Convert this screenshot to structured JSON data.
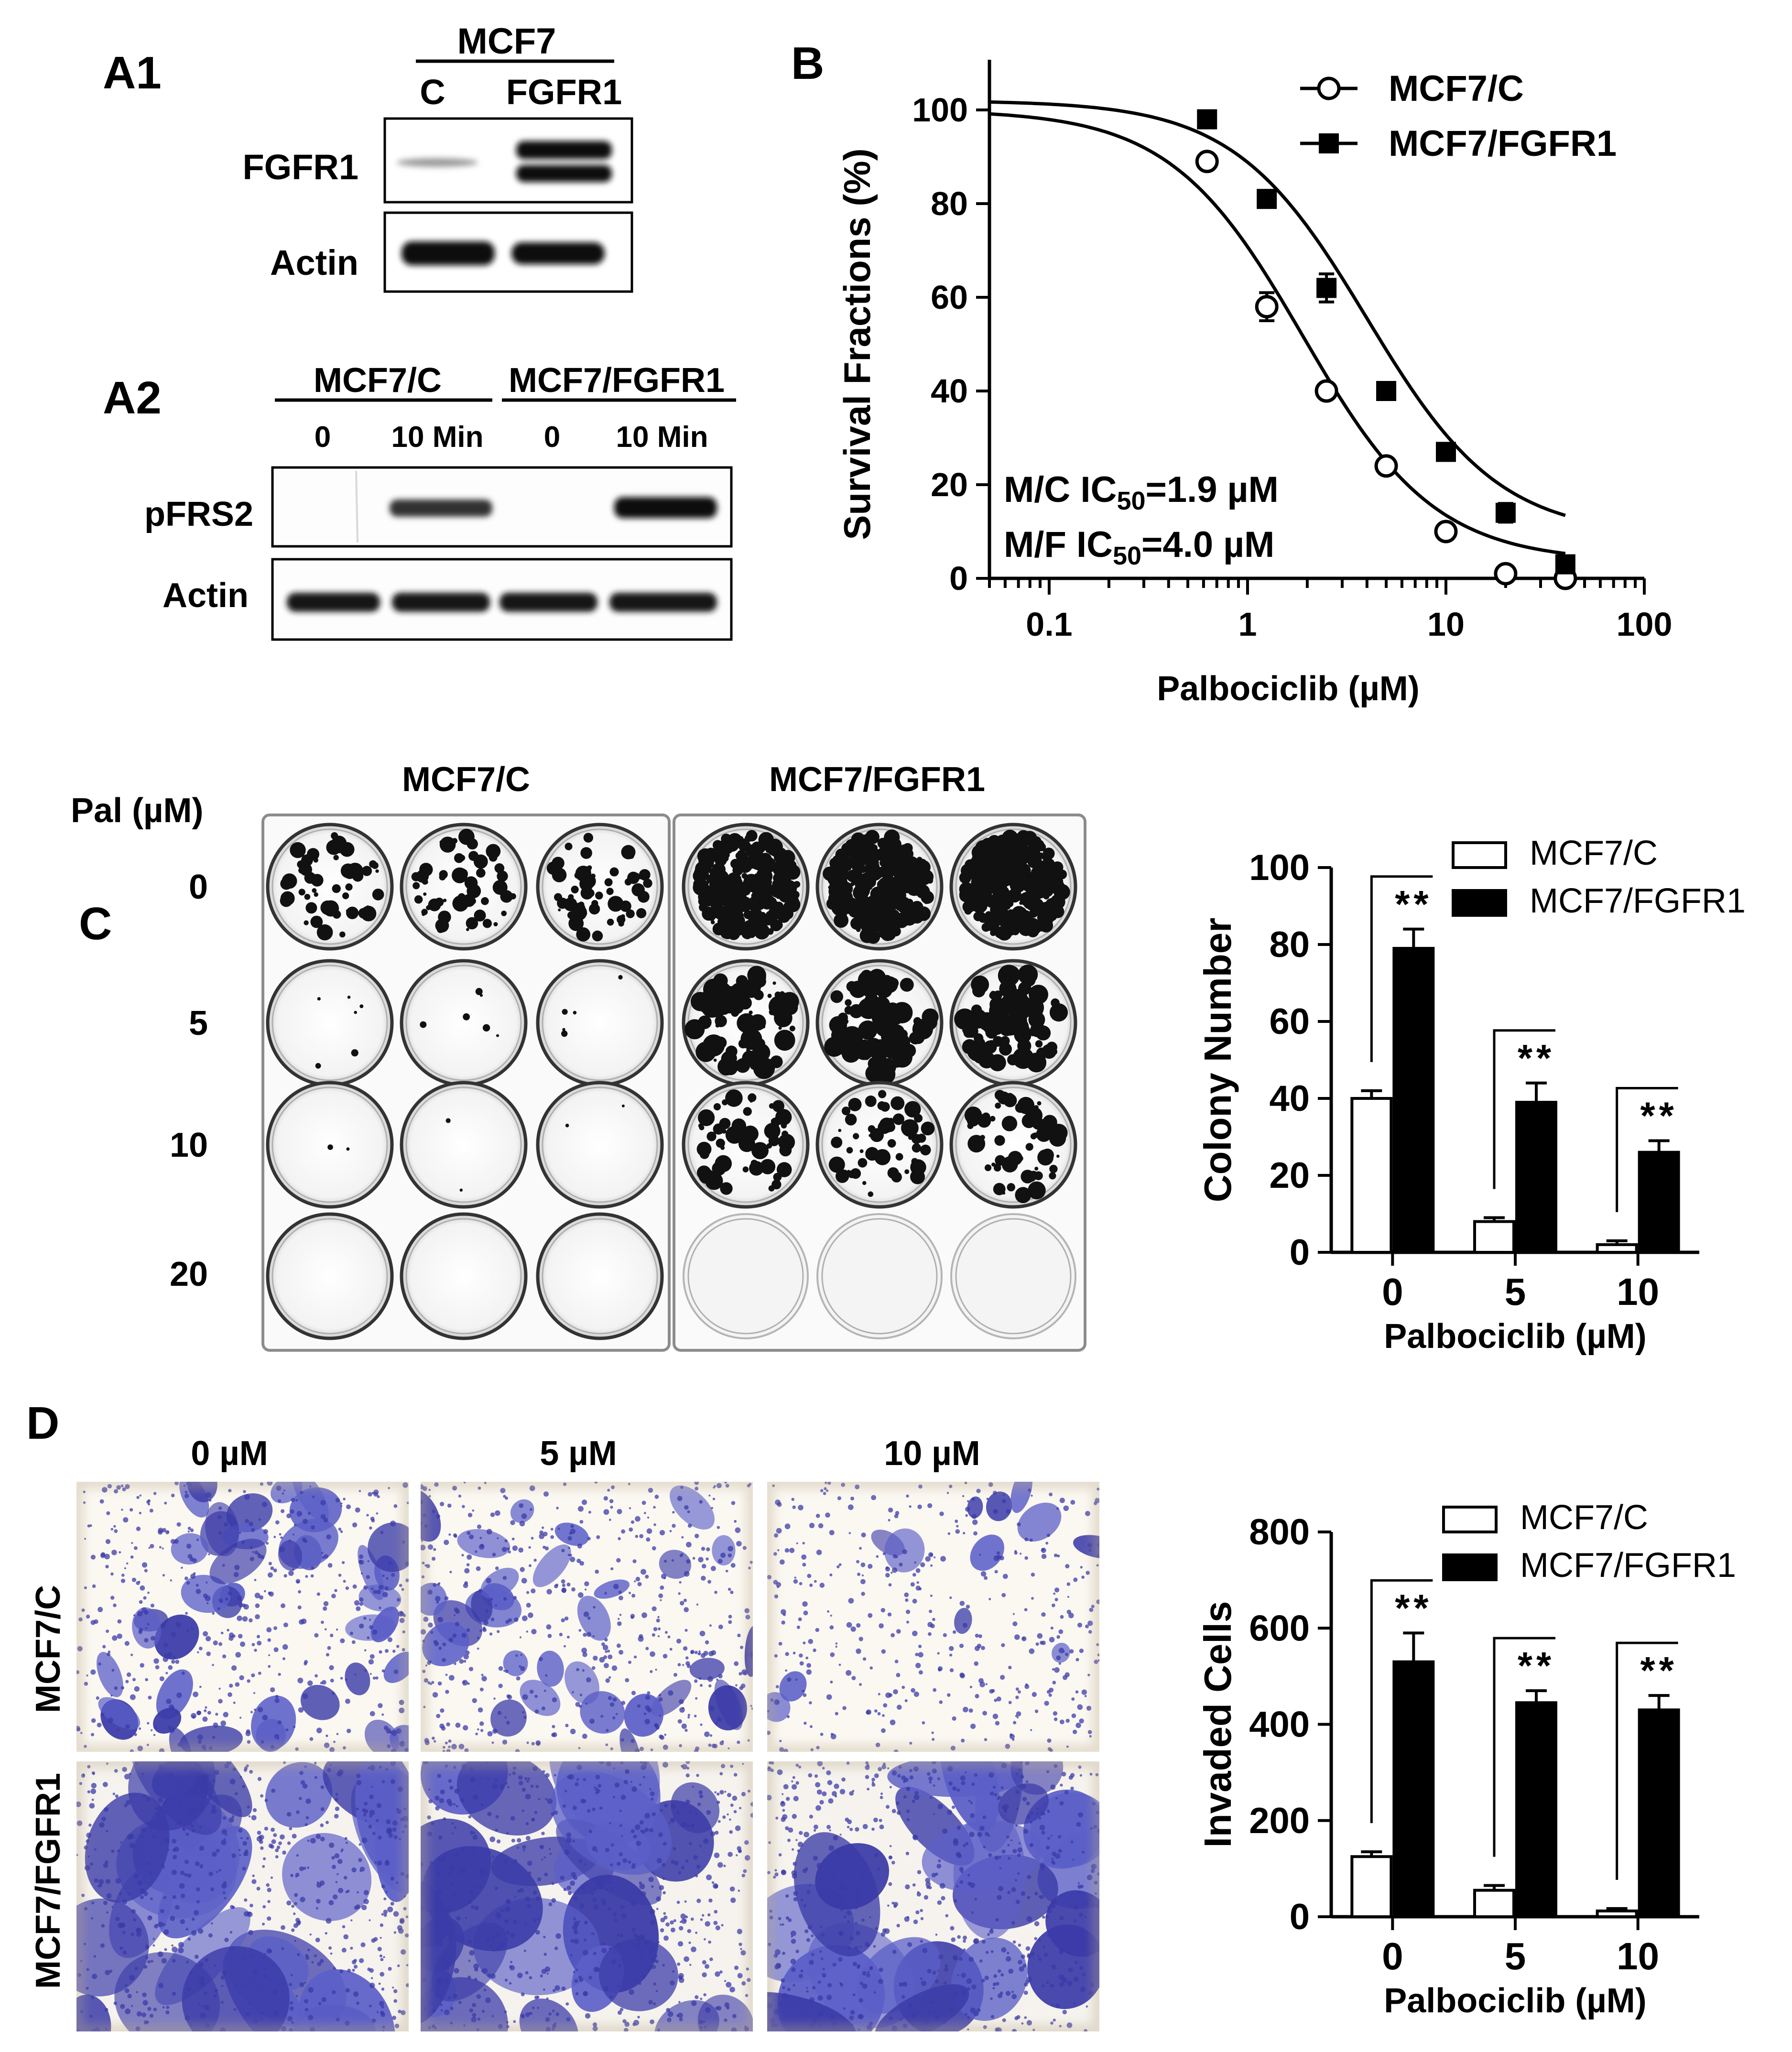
{
  "panels": {
    "a1": {
      "label": "A1",
      "group": "MCF7",
      "lanes": [
        "C",
        "FGFR1"
      ],
      "rows": [
        "FGFR1",
        "Actin"
      ]
    },
    "a2": {
      "label": "A2",
      "groups": [
        "MCF7/C",
        "MCF7/FGFR1"
      ],
      "lanes": [
        "0",
        "10 Min",
        "0",
        "10 Min"
      ],
      "rows": [
        "pFRS2",
        "Actin"
      ]
    },
    "b": {
      "label": "B"
    },
    "c": {
      "label": "C",
      "row_header": "Pal (µM)",
      "columns": [
        "MCF7/C",
        "MCF7/FGFR1"
      ],
      "rows": [
        "0",
        "5",
        "10",
        "20"
      ]
    },
    "d": {
      "label": "D",
      "columns": [
        "0 µM",
        "5 µM",
        "10 µM"
      ],
      "rows": [
        "MCF7/C",
        "MCF7/FGFR1"
      ]
    }
  },
  "colors": {
    "ink": "#000000",
    "stain": "#5b5fc7",
    "stain_dark": "#3b3ba8",
    "paper": "#fbf8f2"
  },
  "chart_data": [
    {
      "id": "B",
      "type": "scatter",
      "xscale": "log",
      "xlabel": "Palbociclib (µM)",
      "ylabel": "Survival Fractions (%)",
      "xlim": [
        0.05,
        100
      ],
      "ylim": [
        0,
        100
      ],
      "xticks": [
        "0.1",
        "1",
        "10",
        "100"
      ],
      "yticks": [
        "0",
        "20",
        "40",
        "60",
        "80",
        "100"
      ],
      "legend_position": "top-right",
      "annotations": [
        "M/C IC50=1.9 µM",
        "M/F IC50=4.0 µM"
      ],
      "series": [
        {
          "name": "MCF7/C",
          "marker": "open-circle",
          "x": [
            0.625,
            1.25,
            2.5,
            5,
            10,
            20,
            40
          ],
          "y": [
            89,
            58,
            40,
            24,
            10,
            1,
            0
          ],
          "err": [
            0,
            3,
            0,
            0,
            0,
            0,
            0
          ],
          "fit": {
            "top": 100,
            "bottom": 3.5,
            "ic50": 1.9,
            "hill": 1.3
          }
        },
        {
          "name": "MCF7/FGFR1",
          "marker": "filled-square",
          "x": [
            0.625,
            1.25,
            2.5,
            5,
            10,
            20,
            40
          ],
          "y": [
            98,
            81,
            62,
            40,
            27,
            14,
            3
          ],
          "err": [
            0,
            0,
            3,
            0,
            0,
            2,
            0
          ],
          "fit": {
            "top": 102,
            "bottom": 9,
            "ic50": 4.0,
            "hill": 1.3
          }
        }
      ]
    },
    {
      "id": "C",
      "type": "bar",
      "categories": [
        "0",
        "5",
        "10"
      ],
      "xlabel": "Palbociclib (µM)",
      "ylabel": "Colony Number",
      "ylim": [
        0,
        100
      ],
      "yticks": [
        "0",
        "20",
        "40",
        "60",
        "80",
        "100"
      ],
      "legend_position": "top-right",
      "significance": [
        "**",
        "**",
        "**"
      ],
      "series": [
        {
          "name": "MCF7/C",
          "values": [
            40,
            8,
            2
          ],
          "err": [
            2,
            1,
            1
          ]
        },
        {
          "name": "MCF7/FGFR1",
          "values": [
            79,
            39,
            26
          ],
          "err": [
            5,
            5,
            3
          ]
        }
      ]
    },
    {
      "id": "D",
      "type": "bar",
      "categories": [
        "0",
        "5",
        "10"
      ],
      "xlabel": "Palbociclib (µM)",
      "ylabel": "Invaded Cells",
      "ylim": [
        0,
        800
      ],
      "yticks": [
        "0",
        "200",
        "400",
        "600",
        "800"
      ],
      "legend_position": "top-right",
      "significance": [
        "**",
        "**",
        "**"
      ],
      "series": [
        {
          "name": "MCF7/C",
          "values": [
            125,
            55,
            12
          ],
          "err": [
            10,
            10,
            5
          ]
        },
        {
          "name": "MCF7/FGFR1",
          "values": [
            530,
            445,
            430
          ],
          "err": [
            60,
            25,
            30
          ]
        }
      ]
    }
  ]
}
